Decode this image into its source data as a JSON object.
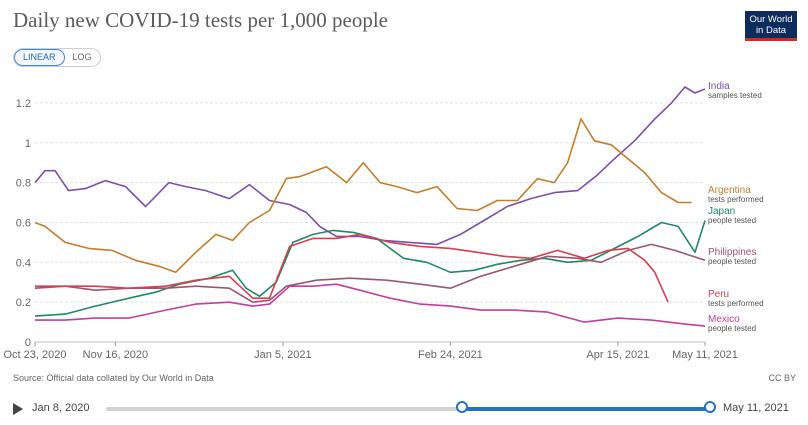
{
  "title": "Daily new COVID-19 tests per 1,000 people",
  "logo": {
    "line1": "Our World",
    "line2": "in Data"
  },
  "scale_toggle": {
    "linear": "LINEAR",
    "log": "LOG",
    "selected": "LINEAR"
  },
  "source": "Source: Official data collated by Our World in Data",
  "license": "CC BY",
  "timeline": {
    "start_label": "Jan 8, 2020",
    "end_label": "May 11, 2021"
  },
  "chart_data": {
    "type": "line",
    "xlabel": "",
    "ylabel": "",
    "ylim": [
      0,
      1.3
    ],
    "yticks": [
      0,
      0.2,
      0.4,
      0.6,
      0.8,
      1,
      1.2
    ],
    "ytick_labels": [
      "0",
      "0.2",
      "0.4",
      "0.6",
      "0.8",
      "1",
      "1.2"
    ],
    "xlim": [
      "2020-10-23",
      "2021-05-11"
    ],
    "xticks": [
      "Oct 23, 2020",
      "Nov 16, 2020",
      "Jan 5, 2021",
      "Feb 24, 2021",
      "Apr 15, 2021",
      "May 11, 2021"
    ],
    "xtick_dates": [
      "2020-10-23",
      "2020-11-16",
      "2021-01-05",
      "2021-02-24",
      "2021-04-15",
      "2021-05-11"
    ],
    "grid": "horizontal",
    "series": [
      {
        "name": "India",
        "note": "samples tested",
        "color": "#7d4fa8",
        "x": [
          "2020-10-23",
          "2020-10-26",
          "2020-10-29",
          "2020-11-02",
          "2020-11-07",
          "2020-11-13",
          "2020-11-19",
          "2020-11-25",
          "2020-12-02",
          "2020-12-07",
          "2020-12-13",
          "2020-12-20",
          "2020-12-26",
          "2021-01-01",
          "2021-01-07",
          "2021-01-12",
          "2021-01-16",
          "2021-01-21",
          "2021-01-28",
          "2021-02-04",
          "2021-02-12",
          "2021-02-20",
          "2021-02-27",
          "2021-03-06",
          "2021-03-13",
          "2021-03-20",
          "2021-03-27",
          "2021-04-03",
          "2021-04-09",
          "2021-04-14",
          "2021-04-20",
          "2021-04-26",
          "2021-05-01",
          "2021-05-05",
          "2021-05-08",
          "2021-05-11"
        ],
        "y": [
          0.8,
          0.86,
          0.86,
          0.76,
          0.77,
          0.81,
          0.78,
          0.68,
          0.8,
          0.78,
          0.76,
          0.72,
          0.79,
          0.71,
          0.69,
          0.65,
          0.58,
          0.53,
          0.53,
          0.51,
          0.5,
          0.49,
          0.54,
          0.61,
          0.68,
          0.72,
          0.75,
          0.76,
          0.84,
          0.92,
          1.01,
          1.12,
          1.2,
          1.28,
          1.25,
          1.27
        ]
      },
      {
        "name": "Argentina",
        "note": "tests performed",
        "color": "#c47e2b",
        "x": [
          "2020-10-23",
          "2020-10-26",
          "2020-11-01",
          "2020-11-08",
          "2020-11-15",
          "2020-11-22",
          "2020-11-29",
          "2020-12-04",
          "2020-12-10",
          "2020-12-16",
          "2020-12-21",
          "2020-12-26",
          "2021-01-01",
          "2021-01-06",
          "2021-01-10",
          "2021-01-18",
          "2021-01-24",
          "2021-01-29",
          "2021-02-03",
          "2021-02-08",
          "2021-02-14",
          "2021-02-20",
          "2021-02-26",
          "2021-03-04",
          "2021-03-10",
          "2021-03-16",
          "2021-03-22",
          "2021-03-27",
          "2021-03-31",
          "2021-04-04",
          "2021-04-08",
          "2021-04-13",
          "2021-04-18",
          "2021-04-23",
          "2021-04-28",
          "2021-05-03",
          "2021-05-07"
        ],
        "y": [
          0.6,
          0.58,
          0.5,
          0.47,
          0.46,
          0.41,
          0.38,
          0.35,
          0.45,
          0.54,
          0.51,
          0.6,
          0.66,
          0.82,
          0.83,
          0.88,
          0.8,
          0.9,
          0.8,
          0.78,
          0.75,
          0.78,
          0.67,
          0.66,
          0.71,
          0.71,
          0.82,
          0.8,
          0.9,
          1.12,
          1.01,
          0.99,
          0.92,
          0.85,
          0.75,
          0.7,
          0.7
        ]
      },
      {
        "name": "Japan",
        "note": "people tested",
        "color": "#1f8a64",
        "x": [
          "2020-10-23",
          "2020-11-01",
          "2020-11-10",
          "2020-11-20",
          "2020-11-28",
          "2020-12-05",
          "2020-12-14",
          "2020-12-21",
          "2020-12-25",
          "2020-12-29",
          "2021-01-03",
          "2021-01-08",
          "2021-01-14",
          "2021-01-20",
          "2021-01-26",
          "2021-02-02",
          "2021-02-10",
          "2021-02-17",
          "2021-02-24",
          "2021-03-03",
          "2021-03-10",
          "2021-03-17",
          "2021-03-24",
          "2021-03-31",
          "2021-04-07",
          "2021-04-14",
          "2021-04-21",
          "2021-04-28",
          "2021-05-03",
          "2021-05-08",
          "2021-05-11"
        ],
        "y": [
          0.13,
          0.14,
          0.18,
          0.22,
          0.25,
          0.29,
          0.32,
          0.36,
          0.27,
          0.23,
          0.3,
          0.5,
          0.54,
          0.56,
          0.55,
          0.52,
          0.42,
          0.4,
          0.35,
          0.36,
          0.39,
          0.41,
          0.42,
          0.4,
          0.41,
          0.47,
          0.53,
          0.6,
          0.58,
          0.45,
          0.61
        ]
      },
      {
        "name": "Philippines",
        "note": "people tested",
        "color": "#9a5670",
        "x": [
          "2020-10-23",
          "2020-11-01",
          "2020-11-10",
          "2020-11-20",
          "2020-12-01",
          "2020-12-10",
          "2020-12-20",
          "2020-12-27",
          "2021-01-01",
          "2021-01-06",
          "2021-01-15",
          "2021-01-25",
          "2021-02-05",
          "2021-02-15",
          "2021-02-24",
          "2021-03-05",
          "2021-03-15",
          "2021-03-25",
          "2021-04-03",
          "2021-04-10",
          "2021-04-18",
          "2021-04-25",
          "2021-05-02",
          "2021-05-11"
        ],
        "y": [
          0.28,
          0.28,
          0.26,
          0.27,
          0.27,
          0.28,
          0.27,
          0.2,
          0.21,
          0.28,
          0.31,
          0.32,
          0.31,
          0.29,
          0.27,
          0.33,
          0.38,
          0.43,
          0.42,
          0.4,
          0.46,
          0.49,
          0.46,
          0.41
        ]
      },
      {
        "name": "Peru",
        "note": "tests performed",
        "color": "#d53f4f",
        "x": [
          "2020-10-23",
          "2020-11-01",
          "2020-11-10",
          "2020-11-20",
          "2020-12-01",
          "2020-12-10",
          "2020-12-20",
          "2020-12-27",
          "2021-01-01",
          "2021-01-07",
          "2021-01-14",
          "2021-01-21",
          "2021-01-28",
          "2021-02-06",
          "2021-02-15",
          "2021-02-24",
          "2021-03-04",
          "2021-03-12",
          "2021-03-20",
          "2021-03-28",
          "2021-04-05",
          "2021-04-12",
          "2021-04-18",
          "2021-04-23",
          "2021-04-26",
          "2021-04-30"
        ],
        "y": [
          0.27,
          0.28,
          0.28,
          0.27,
          0.28,
          0.31,
          0.33,
          0.22,
          0.22,
          0.48,
          0.52,
          0.52,
          0.54,
          0.5,
          0.48,
          0.47,
          0.45,
          0.43,
          0.42,
          0.46,
          0.42,
          0.46,
          0.47,
          0.41,
          0.35,
          0.2
        ]
      },
      {
        "name": "Mexico",
        "note": "people tested",
        "color": "#c13e9e",
        "x": [
          "2020-10-23",
          "2020-11-01",
          "2020-11-10",
          "2020-11-20",
          "2020-12-01",
          "2020-12-10",
          "2020-12-20",
          "2020-12-27",
          "2021-01-01",
          "2021-01-07",
          "2021-01-14",
          "2021-01-21",
          "2021-01-28",
          "2021-02-06",
          "2021-02-15",
          "2021-02-24",
          "2021-03-05",
          "2021-03-15",
          "2021-03-25",
          "2021-04-05",
          "2021-04-15",
          "2021-04-25",
          "2021-05-05",
          "2021-05-11"
        ],
        "y": [
          0.11,
          0.11,
          0.12,
          0.12,
          0.16,
          0.19,
          0.2,
          0.18,
          0.19,
          0.28,
          0.28,
          0.29,
          0.26,
          0.22,
          0.19,
          0.18,
          0.16,
          0.16,
          0.15,
          0.1,
          0.12,
          0.11,
          0.09,
          0.08
        ]
      }
    ]
  }
}
